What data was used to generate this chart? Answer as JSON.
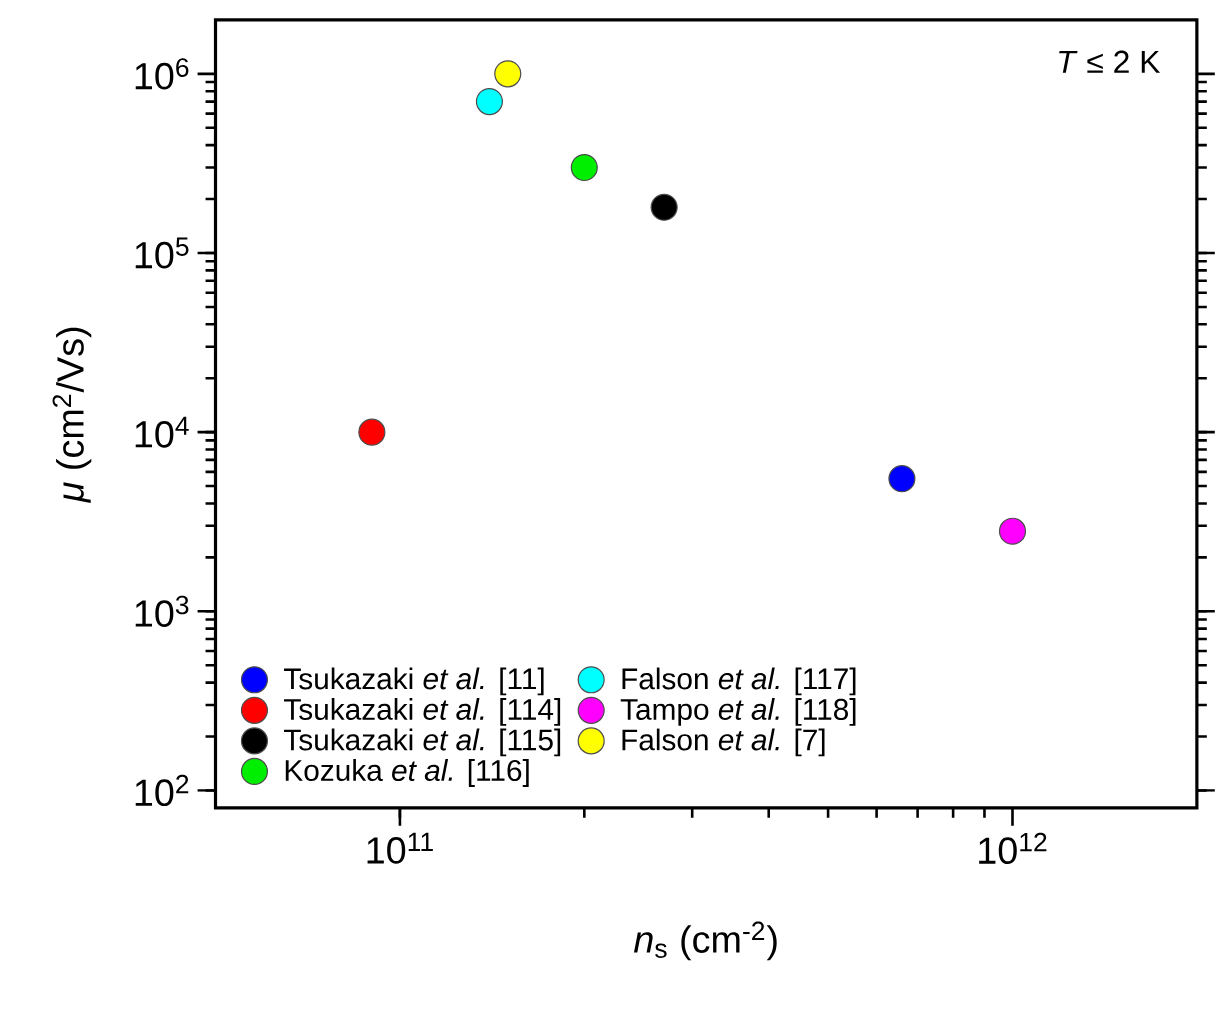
{
  "chart_data": {
    "type": "scatter",
    "xlabel": "*n*$_{s}$ (cm$^{-2}$)",
    "ylabel": "*μ* (cm$^{2}$/Vs)",
    "annotations": [
      "*T* ≤ 2 K"
    ],
    "log": "xy",
    "xlim": [
      50000000000.0,
      2000000000000.0
    ],
    "ylim": [
      80,
      2000000
    ],
    "xticks": [
      {
        "value": 100000000000.0,
        "label": "10$^{11}$"
      },
      {
        "value": 1000000000000.0,
        "label": "10$^{12}$"
      }
    ],
    "yticks": [
      {
        "value": 100,
        "label": "10$^{2}$"
      },
      {
        "value": 1000,
        "label": "10$^{3}$"
      },
      {
        "value": 10000,
        "label": "10$^{4}$"
      },
      {
        "value": 100000,
        "label": "10$^{5}$"
      },
      {
        "value": 1000000,
        "label": "10$^{6}$"
      }
    ],
    "grid": false,
    "legend": "bottom left",
    "marker": "circle",
    "series": [
      {
        "name": "Tsukazaki *et al.* [11]",
        "color": "#0000ff",
        "x": [
          660000000000.0
        ],
        "values": [
          5500
        ]
      },
      {
        "name": "Tsukazaki *et al.* [114]",
        "color": "#ff0000",
        "x": [
          90000000000.0
        ],
        "values": [
          10000
        ]
      },
      {
        "name": "Tsukazaki *et al.* [115]",
        "color": "#000000",
        "x": [
          270000000000.0
        ],
        "values": [
          180000
        ]
      },
      {
        "name": "Kozuka *et al.* [116]",
        "color": "#00ee00",
        "x": [
          200000000000.0
        ],
        "values": [
          300000
        ]
      },
      {
        "name": "Falson *et al.* [117]",
        "color": "#00ffff",
        "x": [
          140000000000.0
        ],
        "values": [
          700000
        ]
      },
      {
        "name": "Tampo *et al.* [118]",
        "color": "#ff00ff",
        "x": [
          1000000000000.0
        ],
        "values": [
          2800
        ]
      },
      {
        "name": "Falson *et al.* [7]",
        "color": "#ffff00",
        "x": [
          150000000000.0
        ],
        "values": [
          1000000
        ]
      }
    ]
  }
}
